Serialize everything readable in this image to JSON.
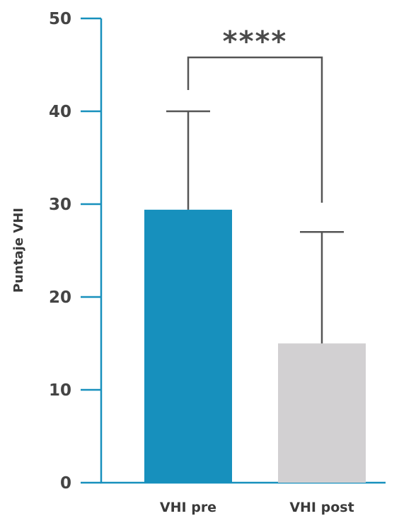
{
  "chart_data": {
    "type": "bar",
    "title": "",
    "xlabel": "",
    "ylabel": "Puntaje VHI",
    "ylim": [
      0,
      50
    ],
    "yticks": [
      0,
      10,
      20,
      30,
      40,
      50
    ],
    "categories": [
      "VHI pre",
      "VHI post"
    ],
    "values": [
      29.4,
      15.0
    ],
    "error_upper": [
      40.0,
      27.0
    ],
    "bar_colors": [
      "#1790bd",
      "#d2d0d2"
    ],
    "axis_color": "#1790bd",
    "errorbar_color": "#555555",
    "significance": {
      "label": "****",
      "between": [
        "VHI pre",
        "VHI post"
      ]
    },
    "grid": false,
    "legend": "none"
  }
}
